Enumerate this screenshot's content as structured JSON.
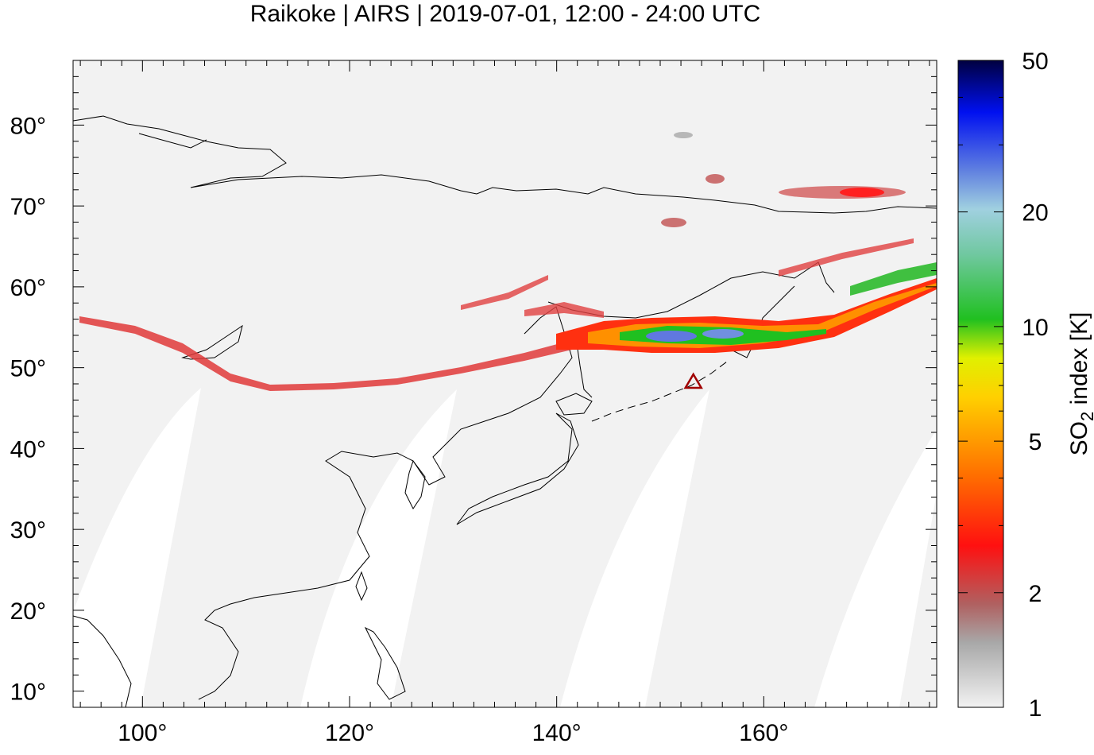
{
  "title": "Raikoke | AIRS | 2019-07-01, 12:00 - 24:00 UTC",
  "map": {
    "projection": "plate carree",
    "lon_range": [
      93.3,
      176.7
    ],
    "lat_range": [
      8,
      88
    ],
    "lon_ticks": [
      {
        "value": 100,
        "label": "100°"
      },
      {
        "value": 120,
        "label": "120°"
      },
      {
        "value": 140,
        "label": "140°"
      },
      {
        "value": 160,
        "label": "160°"
      }
    ],
    "lat_ticks": [
      {
        "value": 10,
        "label": "10°"
      },
      {
        "value": 20,
        "label": "20°"
      },
      {
        "value": 30,
        "label": "30°"
      },
      {
        "value": 40,
        "label": "40°"
      },
      {
        "value": 50,
        "label": "50°"
      },
      {
        "value": 60,
        "label": "60°"
      },
      {
        "value": 70,
        "label": "70°"
      },
      {
        "value": 80,
        "label": "80°"
      }
    ],
    "volcano_marker": {
      "lon": 153.2,
      "lat": 48.3,
      "symbol": "triangle",
      "color": "#a00000"
    }
  },
  "colorbar": {
    "label_prefix": "SO",
    "label_sub": "2",
    "label_suffix": " index [K]",
    "scale": "log",
    "range": [
      1,
      50
    ],
    "ticks": [
      {
        "value": 1,
        "label": "1"
      },
      {
        "value": 2,
        "label": "2"
      },
      {
        "value": 5,
        "label": "5"
      },
      {
        "value": 10,
        "label": "10"
      },
      {
        "value": 20,
        "label": "20"
      },
      {
        "value": 50,
        "label": "50"
      }
    ],
    "colors": [
      "#f0f0f0",
      "#9a9a9a",
      "#cc4040",
      "#ff0000",
      "#ff8000",
      "#ffff00",
      "#00c000",
      "#80d0c0",
      "#6080e0",
      "#0000ff",
      "#000040"
    ]
  }
}
